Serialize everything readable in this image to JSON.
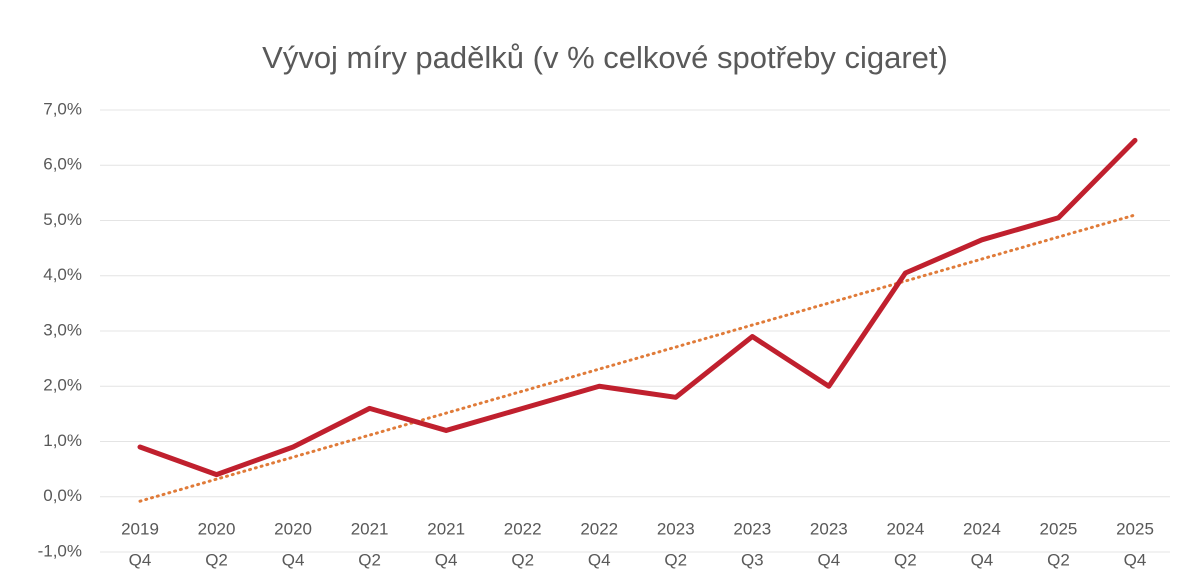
{
  "chart_data": {
    "type": "line",
    "title": "Vývoj míry padělků (v % celkové spotřeby cigaret)",
    "categories": [
      [
        "2019",
        "Q4"
      ],
      [
        "2020",
        "Q2"
      ],
      [
        "2020",
        "Q4"
      ],
      [
        "2021",
        "Q2"
      ],
      [
        "2021",
        "Q4"
      ],
      [
        "2022",
        "Q2"
      ],
      [
        "2022",
        "Q4"
      ],
      [
        "2023",
        "Q2"
      ],
      [
        "2023",
        "Q3"
      ],
      [
        "2023",
        "Q4"
      ],
      [
        "2024",
        "Q2"
      ],
      [
        "2024",
        "Q4"
      ],
      [
        "2025",
        "Q2"
      ],
      [
        "2025",
        "Q4"
      ]
    ],
    "series": [
      {
        "color": "#c0202e",
        "values": [
          0.9,
          0.4,
          0.9,
          1.6,
          1.2,
          1.6,
          2.0,
          1.8,
          2.9,
          2.0,
          4.05,
          4.65,
          5.05,
          6.45
        ]
      }
    ],
    "trend": {
      "color": "#e07b39",
      "values": [
        -0.08,
        5.1
      ]
    },
    "ylim": [
      -1,
      7
    ],
    "yticks": [
      {
        "value": -1,
        "label": "-1,0%"
      },
      {
        "value": 0,
        "label": "0,0%"
      },
      {
        "value": 1,
        "label": "1,0%"
      },
      {
        "value": 2,
        "label": "2,0%"
      },
      {
        "value": 3,
        "label": "3,0%"
      },
      {
        "value": 4,
        "label": "4,0%"
      },
      {
        "value": 5,
        "label": "5,0%"
      },
      {
        "value": 6,
        "label": "6,0%"
      },
      {
        "value": 7,
        "label": "7,0%"
      }
    ],
    "grid": true
  }
}
